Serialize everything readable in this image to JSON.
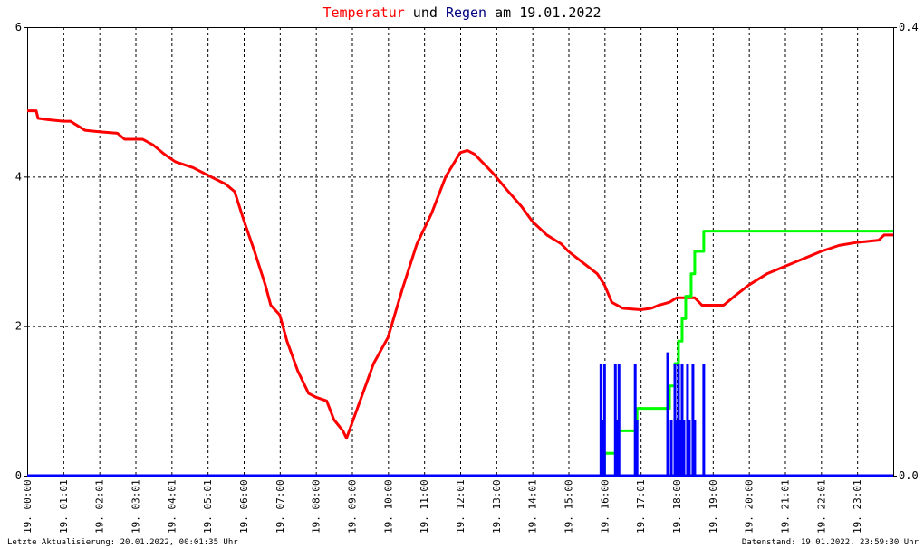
{
  "title": {
    "part1": "Temperatur",
    "part2": " und ",
    "part3": "Regen",
    "part4": " am 19.01.2022"
  },
  "colors": {
    "temperature": "#ff0000",
    "rain_intensity": "#0000ff",
    "rain_total": "#00ff00",
    "grid": "#000000",
    "title_temperature": "#ff0000",
    "title_rain": "#000080"
  },
  "footer": {
    "left": "Letzte Aktualisierung: 20.01.2022, 00:01:35 Uhr",
    "right": "Datenstand: 19.01.2022, 23:59:30 Uhr"
  },
  "chart_data": {
    "type": "line",
    "x_ticks": [
      "19. 00:00",
      "19. 01:01",
      "19. 02:01",
      "19. 03:01",
      "19. 04:01",
      "19. 05:01",
      "19. 06:00",
      "19. 07:00",
      "19. 08:00",
      "19. 09:00",
      "19. 10:00",
      "19. 11:00",
      "19. 12:01",
      "19. 13:00",
      "19. 14:01",
      "19. 15:00",
      "19. 16:00",
      "19. 17:01",
      "19. 18:00",
      "19. 19:00",
      "19. 20:00",
      "19. 21:01",
      "19. 22:01",
      "19. 23:01"
    ],
    "y_left": {
      "min": 0,
      "max": 6,
      "ticks": [
        "0",
        "2",
        "4",
        "6"
      ]
    },
    "y_right": {
      "min": 0,
      "max": 0.4,
      "ticks": [
        "0.0",
        "0.4"
      ]
    },
    "grid": true,
    "series": [
      {
        "key": "temperature",
        "axis": "left",
        "points": [
          [
            0,
            4.88
          ],
          [
            0.25,
            4.88
          ],
          [
            0.3,
            4.78
          ],
          [
            0.6,
            4.76
          ],
          [
            1.0,
            4.74
          ],
          [
            1.2,
            4.74
          ],
          [
            1.6,
            4.62
          ],
          [
            2.0,
            4.6
          ],
          [
            2.5,
            4.58
          ],
          [
            2.7,
            4.5
          ],
          [
            3.2,
            4.5
          ],
          [
            3.5,
            4.42
          ],
          [
            3.8,
            4.3
          ],
          [
            4.1,
            4.2
          ],
          [
            4.6,
            4.12
          ],
          [
            5.0,
            4.02
          ],
          [
            5.5,
            3.9
          ],
          [
            5.75,
            3.8
          ],
          [
            6.0,
            3.42
          ],
          [
            6.3,
            3.0
          ],
          [
            6.6,
            2.55
          ],
          [
            6.75,
            2.28
          ],
          [
            7.0,
            2.15
          ],
          [
            7.2,
            1.8
          ],
          [
            7.5,
            1.4
          ],
          [
            7.8,
            1.1
          ],
          [
            8.0,
            1.05
          ],
          [
            8.3,
            1.0
          ],
          [
            8.5,
            0.75
          ],
          [
            8.75,
            0.6
          ],
          [
            8.85,
            0.5
          ],
          [
            9.0,
            0.7
          ],
          [
            9.3,
            1.1
          ],
          [
            9.6,
            1.5
          ],
          [
            10.0,
            1.85
          ],
          [
            10.4,
            2.5
          ],
          [
            10.8,
            3.1
          ],
          [
            11.2,
            3.5
          ],
          [
            11.6,
            4.0
          ],
          [
            12.0,
            4.32
          ],
          [
            12.2,
            4.35
          ],
          [
            12.4,
            4.3
          ],
          [
            12.6,
            4.2
          ],
          [
            12.9,
            4.05
          ],
          [
            13.3,
            3.82
          ],
          [
            13.7,
            3.6
          ],
          [
            14.0,
            3.4
          ],
          [
            14.4,
            3.22
          ],
          [
            14.8,
            3.1
          ],
          [
            15.0,
            3.0
          ],
          [
            15.4,
            2.85
          ],
          [
            15.8,
            2.7
          ],
          [
            16.0,
            2.55
          ],
          [
            16.2,
            2.32
          ],
          [
            16.5,
            2.24
          ],
          [
            17.0,
            2.22
          ],
          [
            17.3,
            2.24
          ],
          [
            17.5,
            2.28
          ],
          [
            17.8,
            2.32
          ],
          [
            18.0,
            2.38
          ],
          [
            18.5,
            2.38
          ],
          [
            18.7,
            2.28
          ],
          [
            19.3,
            2.28
          ],
          [
            19.6,
            2.4
          ],
          [
            20.0,
            2.55
          ],
          [
            20.5,
            2.7
          ],
          [
            21.0,
            2.8
          ],
          [
            21.5,
            2.9
          ],
          [
            22.0,
            3.0
          ],
          [
            22.5,
            3.08
          ],
          [
            23.0,
            3.12
          ],
          [
            23.6,
            3.15
          ],
          [
            23.75,
            3.22
          ],
          [
            24.0,
            3.22
          ]
        ]
      },
      {
        "key": "rain_total",
        "axis": "right",
        "points": [
          [
            15.95,
            0.0
          ],
          [
            16.0,
            0.02
          ],
          [
            16.3,
            0.02
          ],
          [
            16.35,
            0.04
          ],
          [
            16.85,
            0.04
          ],
          [
            16.9,
            0.06
          ],
          [
            17.75,
            0.06
          ],
          [
            17.8,
            0.08
          ],
          [
            17.95,
            0.1
          ],
          [
            18.05,
            0.12
          ],
          [
            18.15,
            0.14
          ],
          [
            18.25,
            0.16
          ],
          [
            18.4,
            0.18
          ],
          [
            18.5,
            0.2
          ],
          [
            18.7,
            0.2
          ],
          [
            18.75,
            0.218
          ],
          [
            24.0,
            0.218
          ]
        ]
      },
      {
        "key": "rain_intensity",
        "axis": "right",
        "points": [
          [
            15.9,
            0.1
          ],
          [
            15.95,
            0.05
          ],
          [
            16.0,
            0.1
          ],
          [
            16.3,
            0.1
          ],
          [
            16.35,
            0.05
          ],
          [
            16.4,
            0.1
          ],
          [
            16.85,
            0.1
          ],
          [
            16.9,
            0.05
          ],
          [
            17.75,
            0.11
          ],
          [
            17.85,
            0.05
          ],
          [
            17.95,
            0.1
          ],
          [
            18.0,
            0.05
          ],
          [
            18.05,
            0.1
          ],
          [
            18.1,
            0.05
          ],
          [
            18.15,
            0.1
          ],
          [
            18.2,
            0.05
          ],
          [
            18.3,
            0.1
          ],
          [
            18.35,
            0.05
          ],
          [
            18.45,
            0.1
          ],
          [
            18.5,
            0.05
          ],
          [
            18.75,
            0.1
          ]
        ]
      }
    ]
  }
}
